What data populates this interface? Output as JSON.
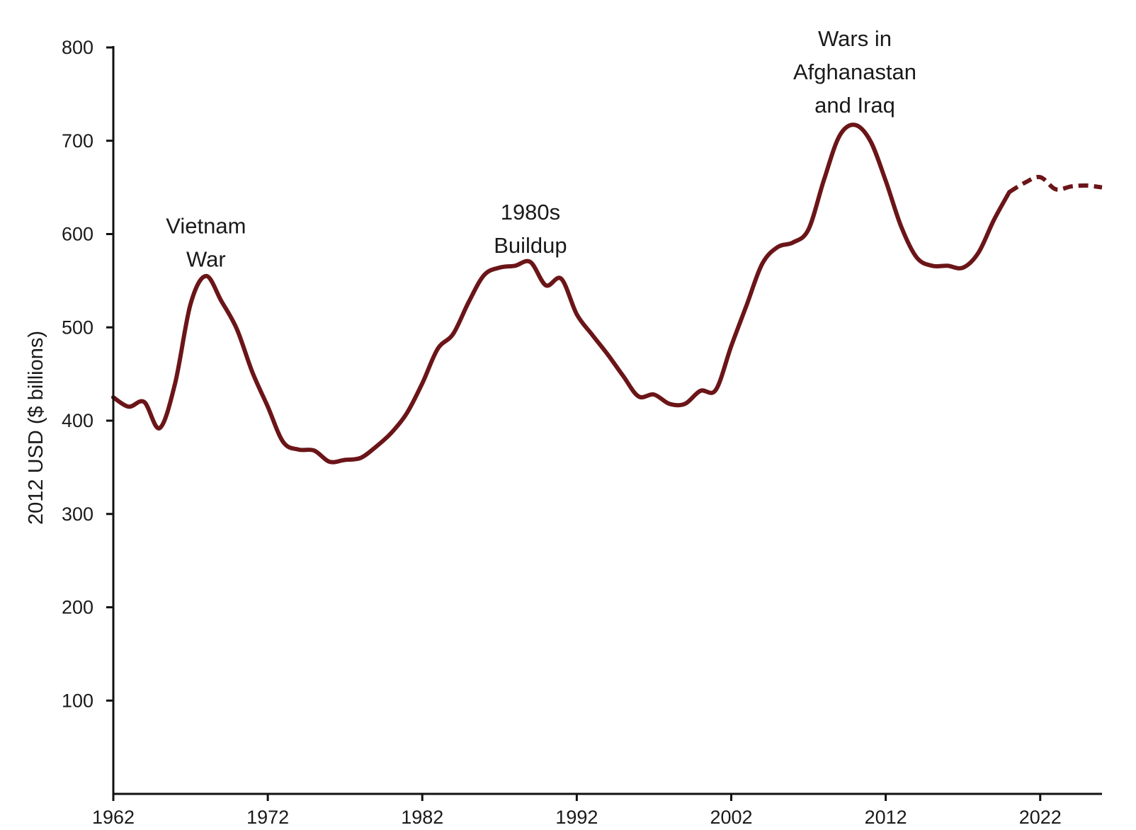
{
  "chart_data": {
    "type": "line",
    "title": "",
    "xlabel": "",
    "ylabel": "2012 USD ($ billions)",
    "xlim": [
      1962,
      2026
    ],
    "ylim": [
      0,
      800
    ],
    "x_ticks": [
      "1962",
      "1972",
      "1982",
      "1992",
      "2002",
      "2012",
      "2022"
    ],
    "y_ticks": [
      "100",
      "200",
      "300",
      "400",
      "500",
      "600",
      "700",
      "800"
    ],
    "grid": false,
    "line_color": "#6b1518",
    "actual": {
      "x": [
        1962,
        1963,
        1964,
        1965,
        1966,
        1967,
        1968,
        1969,
        1970,
        1971,
        1972,
        1973,
        1974,
        1975,
        1976,
        1977,
        1978,
        1979,
        1980,
        1981,
        1982,
        1983,
        1984,
        1985,
        1986,
        1987,
        1988,
        1989,
        1990,
        1991,
        1992,
        1993,
        1994,
        1995,
        1996,
        1997,
        1998,
        1999,
        2000,
        2001,
        2002,
        2003,
        2004,
        2005,
        2006,
        2007,
        2008,
        2009,
        2010,
        2011,
        2012,
        2013,
        2014,
        2015,
        2016,
        2017,
        2018,
        2019,
        2020
      ],
      "y": [
        425,
        415,
        420,
        392,
        440,
        525,
        555,
        528,
        498,
        452,
        415,
        377,
        369,
        368,
        356,
        358,
        360,
        372,
        387,
        408,
        440,
        477,
        493,
        527,
        556,
        564,
        566,
        570,
        545,
        552,
        514,
        492,
        471,
        448,
        426,
        428,
        418,
        418,
        432,
        433,
        480,
        524,
        568,
        586,
        591,
        605,
        658,
        705,
        717,
        700,
        657,
        608,
        575,
        566,
        566,
        564,
        580,
        615,
        645
      ],
      "style": "solid"
    },
    "projected": {
      "x": [
        2020,
        2021,
        2022,
        2023,
        2024,
        2025,
        2026
      ],
      "y": [
        645,
        655,
        661,
        648,
        651,
        652,
        650
      ],
      "style": "dashed"
    },
    "annotations": [
      {
        "lines": [
          "Vietnam",
          "War"
        ],
        "x": 1968,
        "y": 565
      },
      {
        "lines": [
          "1980s",
          "Buildup"
        ],
        "x": 1989,
        "y": 580
      },
      {
        "lines": [
          "Wars in",
          "Afghanastan",
          "and Iraq"
        ],
        "x": 2010,
        "y": 730
      }
    ]
  }
}
